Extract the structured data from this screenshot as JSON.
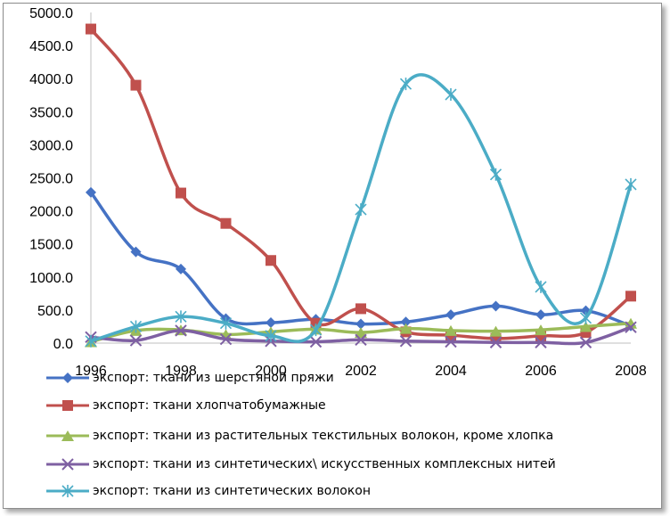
{
  "chart_data": {
    "type": "line",
    "title": "",
    "xlabel": "",
    "ylabel": "",
    "x": [
      1996,
      1997,
      1998,
      1999,
      2000,
      2001,
      2002,
      2003,
      2004,
      2005,
      2006,
      2007,
      2008
    ],
    "x_tick_labels": [
      "1996",
      "1998",
      "2000",
      "2002",
      "2004",
      "2006",
      "2008"
    ],
    "y_tick_labels": [
      "0.0",
      "500.0",
      "1000.0",
      "1500.0",
      "2000.0",
      "2500.0",
      "3000.0",
      "3500.0",
      "4000.0",
      "4500.0",
      "5000.0"
    ],
    "ylim": [
      0,
      5000
    ],
    "grid": false,
    "legend_position": "bottom",
    "series": [
      {
        "name": "экспорт: ткани из шерстяной пряжи",
        "color": "#4572c4",
        "marker": "diamond",
        "values": [
          2280,
          1380,
          1120,
          370,
          310,
          360,
          290,
          320,
          430,
          560,
          430,
          490,
          260
        ]
      },
      {
        "name": "экспорт: ткани хлопчатобумажные",
        "color": "#c0504d",
        "marker": "square",
        "values": [
          4750,
          3900,
          2270,
          1810,
          1250,
          300,
          520,
          170,
          120,
          70,
          110,
          160,
          710
        ]
      },
      {
        "name": "экспорт: ткани из растительных текстильных волокон, кроме хлопка",
        "color": "#9bbb59",
        "marker": "triangle",
        "values": [
          20,
          190,
          200,
          130,
          170,
          210,
          160,
          220,
          190,
          180,
          200,
          250,
          300
        ]
      },
      {
        "name": "экспорт: ткани из синтетических\\ искусственных комплексных нитей",
        "color": "#7e60a2",
        "marker": "x",
        "values": [
          90,
          40,
          190,
          60,
          30,
          20,
          50,
          30,
          20,
          10,
          10,
          10,
          240
        ]
      },
      {
        "name": "экспорт: ткани из синтетических волокон",
        "color": "#4bacc6",
        "marker": "star",
        "values": [
          30,
          250,
          400,
          300,
          110,
          200,
          2020,
          3920,
          3760,
          2550,
          850,
          380,
          2400
        ]
      }
    ]
  }
}
